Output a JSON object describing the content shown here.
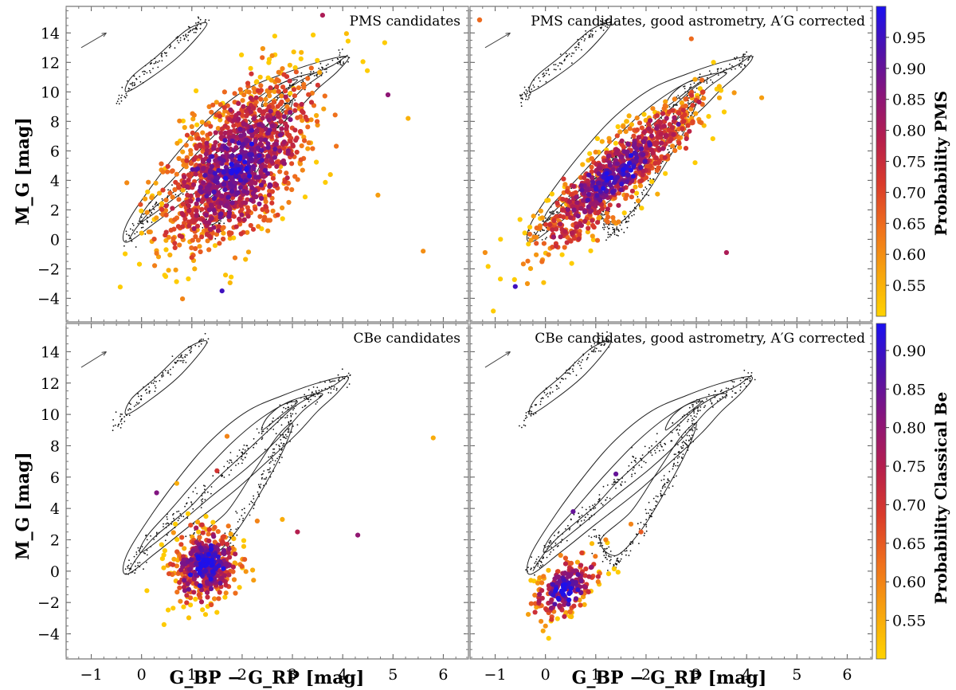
{
  "chart_data": [
    {
      "type": "scatter",
      "panel": "top-left",
      "title": "PMS candidates",
      "xlabel": "G_BP − G_RP [mag]",
      "ylabel": "M_G [mag]",
      "xlim": [
        -1.5,
        6.5
      ],
      "ylim": [
        15.8,
        -5.6
      ],
      "x_ticks": [
        "−1",
        "0",
        "1",
        "2",
        "3",
        "4",
        "5",
        "6"
      ],
      "y_ticks": [
        "−4",
        "−2",
        "0",
        "2",
        "4",
        "6",
        "8",
        "10",
        "12",
        "14"
      ],
      "color_by": "Probability PMS",
      "seed": 11,
      "n_points": 1400,
      "cloud": {
        "c0": 1.9,
        "m0": 5.0,
        "sc": 0.75,
        "sm": 2.9,
        "rho": 0.55
      },
      "outliers": [
        [
          5.6,
          -0.8,
          0.6
        ],
        [
          3.6,
          15.2,
          0.8
        ],
        [
          1.6,
          -3.5,
          0.95
        ],
        [
          4.9,
          9.8,
          0.85
        ],
        [
          5.3,
          8.2,
          0.55
        ],
        [
          4.7,
          3.0,
          0.58
        ]
      ]
    },
    {
      "type": "scatter",
      "panel": "top-right",
      "title": "PMS candidates, good astrometry, A′G corrected",
      "xlabel": "G_BP − G_RP [mag]",
      "xlim": [
        -1.5,
        6.5
      ],
      "ylim": [
        15.8,
        -5.6
      ],
      "x_ticks": [
        "−1",
        "0",
        "1",
        "2",
        "3",
        "4",
        "5",
        "6"
      ],
      "y_ticks": [
        "−4",
        "−2",
        "0",
        "2",
        "4",
        "6",
        "8",
        "10",
        "12",
        "14"
      ],
      "color_by": "Probability PMS",
      "seed": 23,
      "n_points": 900,
      "cloud": {
        "c0": 1.4,
        "m0": 4.4,
        "sc": 0.8,
        "sm": 2.6,
        "rho": 0.88
      },
      "outliers": [
        [
          -1.2,
          -0.9,
          0.6
        ],
        [
          -0.6,
          -3.2,
          0.95
        ],
        [
          3.6,
          -0.9,
          0.8
        ],
        [
          4.3,
          9.6,
          0.58
        ],
        [
          2.9,
          13.6,
          0.65
        ]
      ]
    },
    {
      "type": "scatter",
      "panel": "bottom-left",
      "title": "CBe candidates",
      "xlabel": "G_BP − G_RP [mag]",
      "ylabel": "M_G [mag]",
      "xlim": [
        -1.5,
        6.5
      ],
      "ylim": [
        15.8,
        -5.6
      ],
      "x_ticks": [
        "−1",
        "0",
        "1",
        "2",
        "3",
        "4",
        "5",
        "6"
      ],
      "y_ticks": [
        "−4",
        "−2",
        "0",
        "2",
        "4",
        "6",
        "8",
        "10",
        "12",
        "14"
      ],
      "color_by": "Probability Classical Be",
      "seed": 37,
      "n_points": 480,
      "cloud": {
        "c0": 1.3,
        "m0": 0.4,
        "sc": 0.32,
        "sm": 1.1,
        "rho": 0.1
      },
      "outliers": [
        [
          3.1,
          2.5,
          0.75
        ],
        [
          4.3,
          2.3,
          0.8
        ],
        [
          2.3,
          3.2,
          0.6
        ],
        [
          2.8,
          3.3,
          0.55
        ],
        [
          5.8,
          8.5,
          0.55
        ],
        [
          0.3,
          5.0,
          0.82
        ],
        [
          0.7,
          5.6,
          0.55
        ],
        [
          1.5,
          6.4,
          0.7
        ],
        [
          1.7,
          8.6,
          0.6
        ]
      ]
    },
    {
      "type": "scatter",
      "panel": "bottom-right",
      "title": "CBe candidates, good astrometry, A′G corrected",
      "xlabel": "G_BP − G_RP [mag]",
      "xlim": [
        -1.5,
        6.5
      ],
      "ylim": [
        15.8,
        -5.6
      ],
      "x_ticks": [
        "−1",
        "0",
        "1",
        "2",
        "3",
        "4",
        "5",
        "6"
      ],
      "y_ticks": [
        "−4",
        "−2",
        "0",
        "2",
        "4",
        "6",
        "8",
        "10",
        "12",
        "14"
      ],
      "color_by": "Probability Classical Be",
      "seed": 53,
      "n_points": 230,
      "cloud": {
        "c0": 0.4,
        "m0": -1.1,
        "sc": 0.32,
        "sm": 0.9,
        "rho": 0.45
      },
      "outliers": [
        [
          0.0,
          -3.5,
          0.58
        ],
        [
          1.2,
          2.0,
          0.6
        ],
        [
          0.55,
          3.8,
          0.85
        ],
        [
          1.9,
          2.5,
          0.65
        ],
        [
          1.4,
          6.2,
          0.85
        ],
        [
          1.7,
          3.0,
          0.6
        ]
      ]
    }
  ],
  "colorbars": [
    {
      "label": "Probability PMS",
      "vmin": 0.5,
      "vmax": 1.0,
      "ticks": [
        "0.55",
        "0.60",
        "0.65",
        "0.70",
        "0.75",
        "0.80",
        "0.85",
        "0.90",
        "0.95"
      ]
    },
    {
      "label": "Probability Classical Be",
      "vmin": 0.5,
      "vmax": 0.935,
      "ticks": [
        "0.55",
        "0.60",
        "0.65",
        "0.70",
        "0.75",
        "0.80",
        "0.85",
        "0.90"
      ]
    }
  ],
  "colormap": [
    "#ffd300",
    "#f7a30e",
    "#ef6f1c",
    "#d93a2b",
    "#b51e4d",
    "#8a157a",
    "#4f12aa",
    "#1a10f0"
  ],
  "reference_color": "#111111"
}
